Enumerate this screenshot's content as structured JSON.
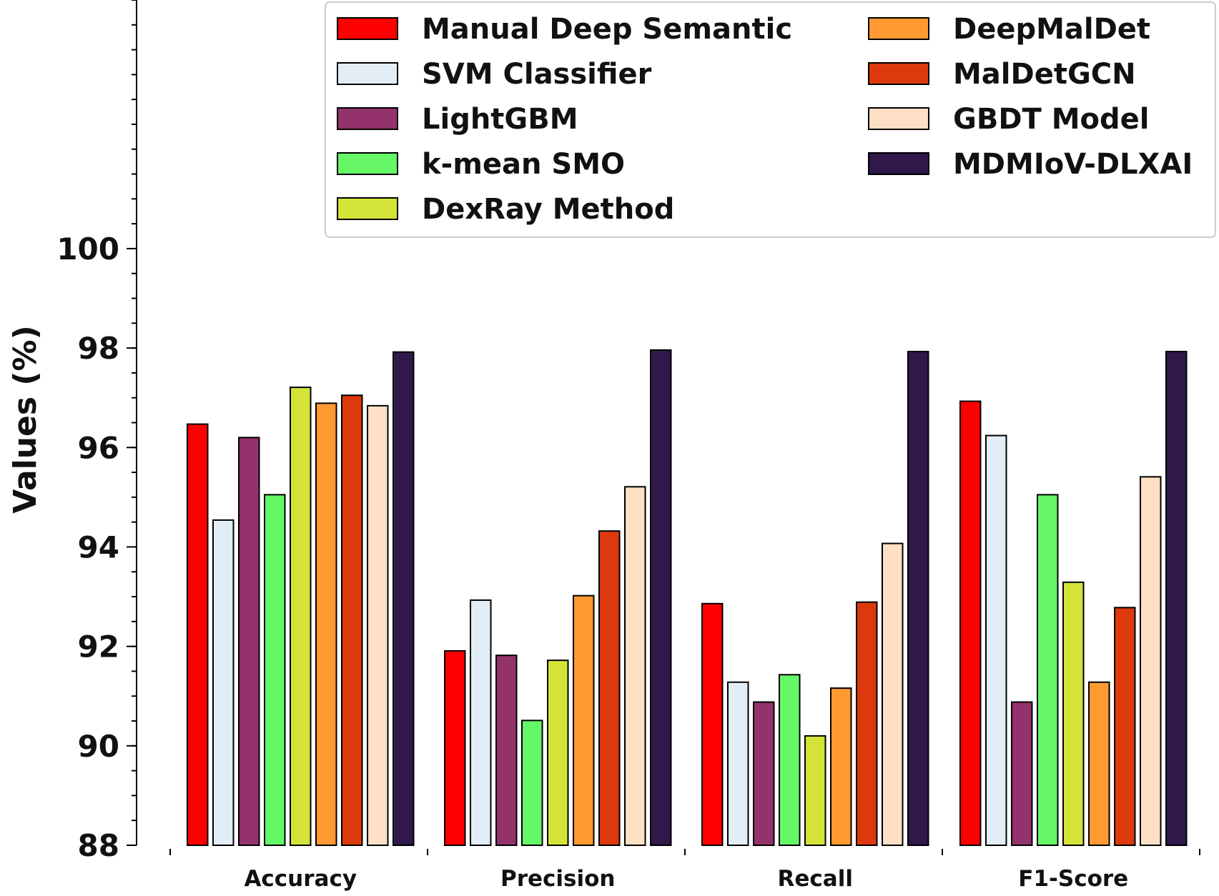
{
  "chart_data": {
    "type": "bar",
    "title": "",
    "xlabel": "",
    "ylabel": "Values (%)",
    "ylim": [
      88,
      105
    ],
    "yticks": [
      88,
      90,
      92,
      94,
      96,
      98,
      100
    ],
    "minor_tick_step": 0.5,
    "grid": false,
    "legend_position": "top-right",
    "categories": [
      "Accuracy",
      "Precision",
      "Recall",
      "F1-Score"
    ],
    "series": [
      {
        "name": "Manual Deep Semantic",
        "color": "#ff0000",
        "values": [
          96.47,
          91.91,
          92.86,
          96.93
        ]
      },
      {
        "name": "SVM Classifier",
        "color": "#e3edf6",
        "values": [
          94.54,
          92.93,
          91.28,
          96.24
        ]
      },
      {
        "name": "LightGBM",
        "color": "#93326b",
        "values": [
          96.2,
          91.82,
          90.88,
          90.88
        ]
      },
      {
        "name": "k-mean SMO",
        "color": "#66f766",
        "values": [
          95.05,
          90.51,
          91.43,
          95.05
        ]
      },
      {
        "name": "DexRay Method",
        "color": "#d4e338",
        "values": [
          97.21,
          91.72,
          90.2,
          93.29
        ]
      },
      {
        "name": "DeepMalDet",
        "color": "#ff9a33",
        "values": [
          96.89,
          93.02,
          91.16,
          91.28
        ]
      },
      {
        "name": "MalDetGCN",
        "color": "#dc3a0e",
        "values": [
          97.05,
          94.32,
          92.89,
          92.78
        ]
      },
      {
        "name": "GBDT Model",
        "color": "#fde0c5",
        "values": [
          96.84,
          95.21,
          94.07,
          95.41
        ]
      },
      {
        "name": "MDMIoV-DLXAI",
        "color": "#30184a",
        "values": [
          97.92,
          97.96,
          97.93,
          97.93
        ]
      }
    ]
  }
}
